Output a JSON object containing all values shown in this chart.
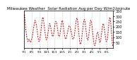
{
  "title": "Milwaukee Weather  Solar Radiation Avg per Day W/m2/minute",
  "background_color": "#ffffff",
  "line_color": "#cc0000",
  "grid_color": "#999999",
  "ylim": [
    0,
    350
  ],
  "yticks": [
    50,
    100,
    150,
    200,
    250,
    300,
    350
  ],
  "ytick_labels": [
    "50",
    "100",
    "150",
    "200",
    "250",
    "300",
    "350"
  ],
  "values": [
    280,
    310,
    320,
    290,
    260,
    230,
    200,
    175,
    155,
    135,
    120,
    105,
    90,
    80,
    70,
    65,
    60,
    58,
    62,
    70,
    80,
    78,
    72,
    65,
    60,
    55,
    52,
    50,
    55,
    60,
    70,
    80,
    90,
    100,
    115,
    130,
    145,
    160,
    175,
    190,
    205,
    220,
    235,
    248,
    255,
    260,
    255,
    248,
    238,
    228,
    215,
    200,
    185,
    168,
    150,
    130,
    110,
    90,
    75,
    65,
    60,
    58,
    62,
    70,
    82,
    95,
    110,
    125,
    145,
    165,
    188,
    210,
    235,
    255,
    270,
    282,
    290,
    285,
    275,
    260,
    242,
    222,
    200,
    178,
    158,
    140,
    122,
    108,
    95,
    85,
    78,
    75,
    78,
    85,
    95,
    108,
    122,
    138,
    155,
    172,
    190,
    205,
    218,
    225,
    228,
    225,
    218,
    208,
    195,
    182,
    168,
    152,
    138,
    125,
    115,
    108,
    105,
    108,
    115,
    125,
    138,
    152,
    168,
    185,
    202,
    218,
    232,
    242,
    248,
    250,
    248,
    242,
    232,
    218,
    202,
    185,
    168,
    152,
    138,
    125,
    115,
    108,
    105,
    108,
    115,
    125,
    138,
    155,
    172,
    190,
    208,
    225,
    240,
    252,
    258,
    258,
    252,
    240,
    225,
    208,
    188,
    168,
    148,
    130,
    115,
    102,
    92,
    85,
    82,
    82,
    85,
    90,
    98,
    108,
    120,
    132,
    145,
    158,
    170,
    182,
    192,
    200,
    205,
    208,
    208,
    205,
    200,
    192,
    182,
    170,
    158,
    145,
    132,
    120,
    108,
    98,
    90,
    85,
    82,
    80,
    82,
    88,
    98,
    110,
    125,
    142,
    160,
    178,
    198,
    218,
    238,
    255,
    268,
    278,
    282,
    280,
    272,
    258,
    238,
    215,
    188,
    158,
    128,
    100,
    75,
    55,
    42,
    35,
    32,
    35,
    42,
    52,
    65,
    80,
    98,
    118,
    140,
    162,
    185,
    208,
    228,
    245,
    258,
    265,
    268,
    265,
    258,
    245,
    228,
    208,
    185,
    162,
    140,
    120,
    102,
    88,
    78,
    72,
    72,
    78,
    88,
    102,
    120,
    142,
    165,
    188,
    210,
    230,
    245,
    255,
    260,
    258,
    250,
    238,
    222,
    202,
    180,
    158,
    135,
    112,
    90,
    70,
    52,
    38,
    28,
    22,
    20,
    22,
    28,
    38,
    52,
    68,
    85,
    102,
    118,
    132,
    142,
    148,
    148,
    142,
    132,
    118,
    102,
    85,
    70,
    58,
    50,
    48,
    50,
    58,
    70,
    85,
    102,
    120,
    140,
    160,
    180,
    198,
    212,
    222,
    228,
    228,
    222,
    212,
    198,
    180,
    160,
    140,
    120,
    102,
    85,
    72,
    62,
    58,
    58,
    62,
    70,
    82,
    98,
    118,
    142,
    168,
    195,
    222,
    248,
    268,
    282,
    288,
    285,
    272,
    252,
    228,
    198,
    165,
    132,
    100,
    70,
    45,
    28,
    18,
    12,
    15
  ],
  "x_tick_positions": [
    0,
    31,
    62,
    93,
    124,
    154,
    185,
    213,
    244,
    274,
    305,
    335
  ],
  "x_tick_labels": [
    "7/1",
    "8/1",
    "9/1",
    "10/1",
    "11/1",
    "12/1",
    "1/1",
    "2/1",
    "3/1",
    "4/1",
    "5/1",
    "6/1"
  ],
  "title_fontsize": 4.0,
  "tick_fontsize": 3.5,
  "linewidth": 0.7
}
